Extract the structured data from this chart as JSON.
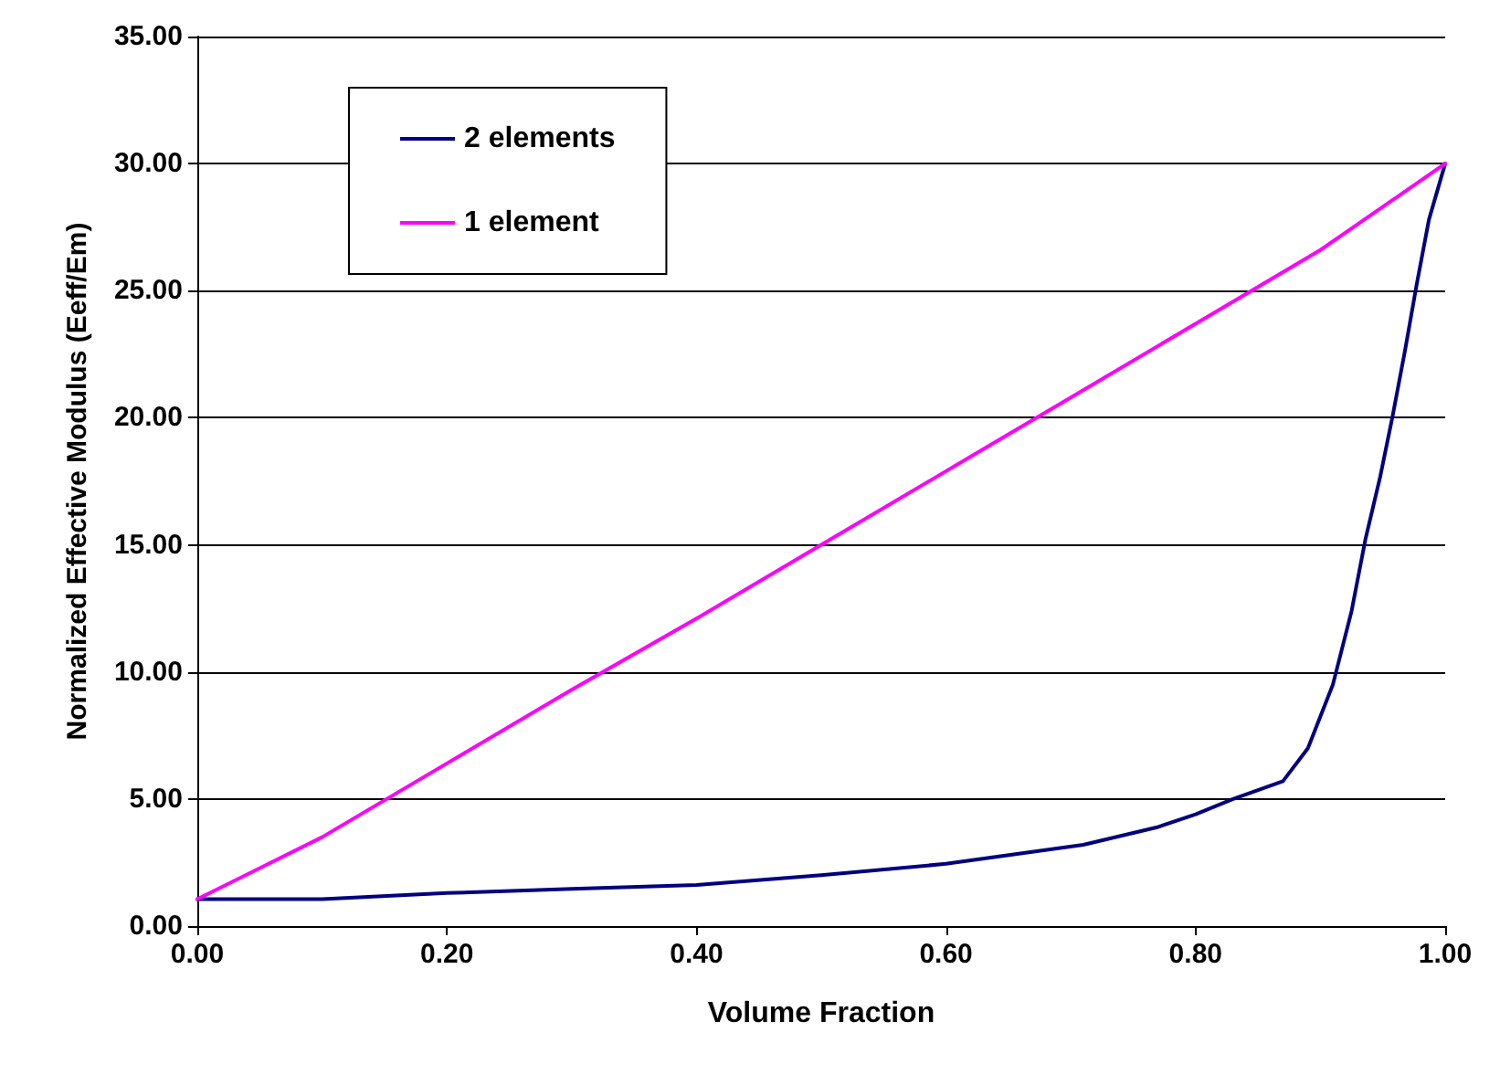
{
  "chart_data": {
    "type": "line",
    "xlabel": "Volume Fraction",
    "ylabel": "Normalized Effective Modulus (Eeff/Em)",
    "xlim": [
      0,
      1
    ],
    "xticks": [
      {
        "value": 0,
        "label": "0.00"
      },
      {
        "value": 0.2,
        "label": "0.20"
      },
      {
        "value": 0.4,
        "label": "0.40"
      },
      {
        "value": 0.6,
        "label": "0.60"
      },
      {
        "value": 0.8,
        "label": "0.80"
      },
      {
        "value": 1,
        "label": "1.00"
      }
    ],
    "ylim": [
      0,
      35
    ],
    "yticks": [
      {
        "value": 0,
        "label": "0.00"
      },
      {
        "value": 5,
        "label": "5.00"
      },
      {
        "value": 10,
        "label": "10.00"
      },
      {
        "value": 15,
        "label": "15.00"
      },
      {
        "value": 20,
        "label": "20.00"
      },
      {
        "value": 25,
        "label": "25.00"
      },
      {
        "value": 30,
        "label": "30.00"
      },
      {
        "value": 35,
        "label": "35.00"
      }
    ],
    "grid": "y",
    "legend": "top left",
    "marker": "none",
    "line_style": "solid",
    "series": [
      {
        "name": "2 elements",
        "color": "#000080",
        "x": [
          0,
          0.1,
          0.2,
          0.3,
          0.4,
          0.5,
          0.6,
          0.71,
          0.77,
          0.8,
          0.83,
          0.87,
          0.89,
          0.91,
          0.925,
          0.936,
          0.948,
          0.958,
          0.968,
          0.977,
          0.987,
          1.0
        ],
        "values": [
          1.06,
          1.06,
          1.3,
          1.46,
          1.62,
          2.0,
          2.45,
          3.2,
          3.9,
          4.4,
          5.0,
          5.7,
          7.0,
          9.5,
          12.4,
          15.2,
          17.7,
          20.1,
          22.7,
          25.2,
          27.8,
          30.0
        ]
      },
      {
        "name": "1 element",
        "color": "#ff00ff",
        "x": [
          0,
          0.1,
          0.2,
          0.3,
          0.4,
          0.5,
          0.6,
          0.7,
          0.8,
          0.9,
          1.0
        ],
        "values": [
          1.06,
          3.5,
          6.4,
          9.3,
          12.1,
          15.0,
          17.9,
          20.8,
          23.7,
          26.6,
          30.0
        ]
      }
    ]
  }
}
